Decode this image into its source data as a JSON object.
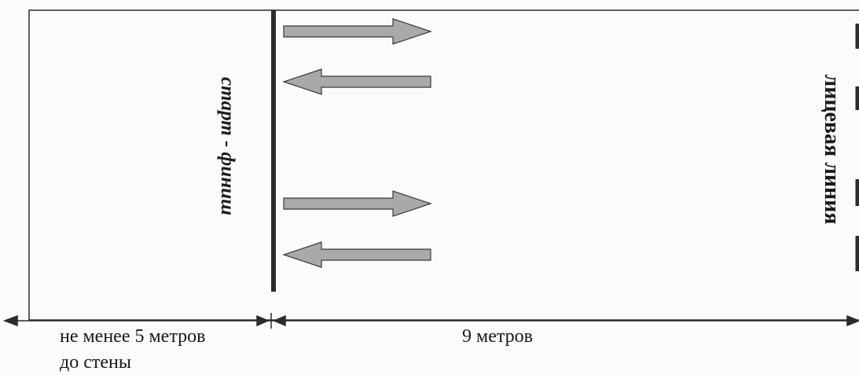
{
  "labels": {
    "start_finish": "старт - финиш",
    "face_line": "лицевая линия",
    "left_distance_line1": "не менее 5 метров",
    "left_distance_line2": "до стены",
    "right_distance": "9 метров"
  },
  "arrows": [
    {
      "direction": "right"
    },
    {
      "direction": "left"
    },
    {
      "direction": "right"
    },
    {
      "direction": "left"
    }
  ],
  "colors": {
    "line": "#2b2b2b",
    "arrow_fill": "#a9a9a9",
    "arrow_stroke": "#3a3a3a"
  }
}
